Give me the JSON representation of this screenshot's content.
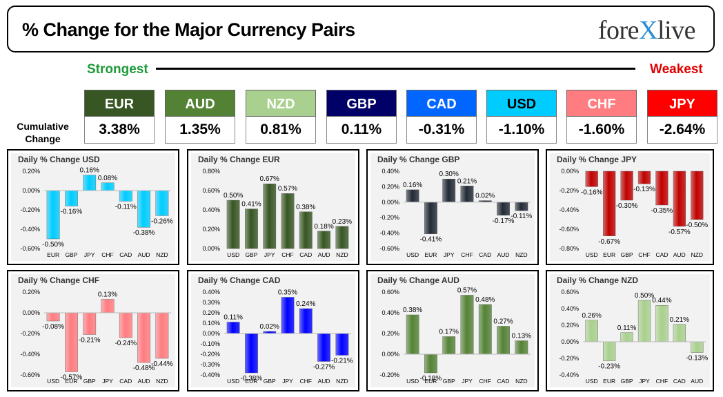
{
  "header": {
    "title": "% Change for the Major Currency Pairs",
    "logo_left": "fore",
    "logo_x": "X",
    "logo_right": "live"
  },
  "scale": {
    "strongest": "Strongest",
    "weakest": "Weakest"
  },
  "cumulative": {
    "label_line1": "Cumulative",
    "label_line2": "Change",
    "items": [
      {
        "code": "EUR",
        "value": "3.38%",
        "color": "#375623",
        "text_color": "#ffffff"
      },
      {
        "code": "AUD",
        "value": "1.35%",
        "color": "#548235",
        "text_color": "#ffffff"
      },
      {
        "code": "NZD",
        "value": "0.81%",
        "color": "#a9d08e",
        "text_color": "#ffffff"
      },
      {
        "code": "GBP",
        "value": "0.11%",
        "color": "#000066",
        "text_color": "#ffffff"
      },
      {
        "code": "CAD",
        "value": "-0.31%",
        "color": "#0066ff",
        "text_color": "#ffffff"
      },
      {
        "code": "USD",
        "value": "-1.10%",
        "color": "#00ccff",
        "text_color": "#000000"
      },
      {
        "code": "CHF",
        "value": "-1.60%",
        "color": "#ff7c80",
        "text_color": "#ffffff"
      },
      {
        "code": "JPY",
        "value": "-2.64%",
        "color": "#ff0000",
        "text_color": "#ffffff"
      }
    ]
  },
  "chart_data": [
    {
      "type": "bar",
      "title": "Daily % Change USD",
      "categories": [
        "EUR",
        "GBP",
        "JPY",
        "CHF",
        "CAD",
        "AUD",
        "NZD"
      ],
      "values": [
        -0.5,
        -0.16,
        0.16,
        0.08,
        -0.11,
        -0.38,
        -0.26
      ],
      "labels": [
        "-0.50%",
        "-0.16%",
        "0.16%",
        "0.08%",
        "-0.11%",
        "-0.38%",
        "-0.26%"
      ],
      "ylim": [
        -0.6,
        0.2
      ],
      "yticks": [
        0.2,
        0.0,
        -0.2,
        -0.4,
        -0.6
      ],
      "ytick_labels": [
        "0.20%",
        "0.00%",
        "-0.20%",
        "-0.40%",
        "-0.60%"
      ],
      "color": "#00ccff"
    },
    {
      "type": "bar",
      "title": "Daily % Change EUR",
      "categories": [
        "USD",
        "GBP",
        "JPY",
        "CHF",
        "CAD",
        "AUD",
        "NZD"
      ],
      "values": [
        0.5,
        0.41,
        0.67,
        0.57,
        0.38,
        0.18,
        0.23
      ],
      "labels": [
        "0.50%",
        "0.41%",
        "0.67%",
        "0.57%",
        "0.38%",
        "0.18%",
        "0.23%"
      ],
      "ylim": [
        0.0,
        0.8
      ],
      "yticks": [
        0.8,
        0.6,
        0.4,
        0.2,
        0.0
      ],
      "ytick_labels": [
        "0.80%",
        "0.60%",
        "0.40%",
        "0.20%",
        "0.00%"
      ],
      "color": "#375623"
    },
    {
      "type": "bar",
      "title": "Daily % Change GBP",
      "categories": [
        "USD",
        "EUR",
        "JPY",
        "CHF",
        "CAD",
        "AUD",
        "NZD"
      ],
      "values": [
        0.16,
        -0.41,
        0.3,
        0.21,
        0.02,
        -0.17,
        -0.11
      ],
      "labels": [
        "0.16%",
        "-0.41%",
        "0.30%",
        "0.21%",
        "0.02%",
        "-0.17%",
        "-0.11%"
      ],
      "ylim": [
        -0.6,
        0.4
      ],
      "yticks": [
        0.4,
        0.2,
        0.0,
        -0.2,
        -0.4,
        -0.6
      ],
      "ytick_labels": [
        "0.40%",
        "0.20%",
        "0.00%",
        "-0.20%",
        "-0.40%",
        "-0.60%"
      ],
      "color": "#222a35"
    },
    {
      "type": "bar",
      "title": "Daily % Change JPY",
      "categories": [
        "USD",
        "EUR",
        "GBP",
        "CHF",
        "CAD",
        "AUD",
        "NZD"
      ],
      "values": [
        -0.16,
        -0.67,
        -0.3,
        -0.13,
        -0.35,
        -0.57,
        -0.5
      ],
      "labels": [
        "-0.16%",
        "-0.67%",
        "-0.30%",
        "-0.13%",
        "-0.35%",
        "-0.57%",
        "-0.50%"
      ],
      "ylim": [
        -0.8,
        0.0
      ],
      "yticks": [
        0.0,
        -0.2,
        -0.4,
        -0.6,
        -0.8
      ],
      "ytick_labels": [
        "0.00%",
        "-0.20%",
        "-0.40%",
        "-0.60%",
        "-0.80%"
      ],
      "color": "#c00000"
    },
    {
      "type": "bar",
      "title": "Daily % Change CHF",
      "categories": [
        "USD",
        "EUR",
        "GBP",
        "JPY",
        "CAD",
        "AUD",
        "NZD"
      ],
      "values": [
        -0.08,
        -0.57,
        -0.21,
        0.13,
        -0.24,
        -0.48,
        -0.44
      ],
      "labels": [
        "-0.08%",
        "-0.57%",
        "-0.21%",
        "0.13%",
        "-0.24%",
        "-0.48%",
        "-0.44%"
      ],
      "ylim": [
        -0.6,
        0.2
      ],
      "yticks": [
        0.2,
        0.0,
        -0.2,
        -0.4,
        -0.6
      ],
      "ytick_labels": [
        "0.20%",
        "0.00%",
        "-0.20%",
        "-0.40%",
        "-0.60%"
      ],
      "color": "#ff7c80"
    },
    {
      "type": "bar",
      "title": "Daily % Change CAD",
      "categories": [
        "USD",
        "EUR",
        "GBP",
        "JPY",
        "CHF",
        "AUD",
        "NZD"
      ],
      "values": [
        0.11,
        -0.38,
        0.02,
        0.35,
        0.24,
        -0.27,
        -0.21
      ],
      "labels": [
        "0.11%",
        "-0.38%",
        "0.02%",
        "0.35%",
        "0.24%",
        "-0.27%",
        "-0.21%"
      ],
      "ylim": [
        -0.4,
        0.4
      ],
      "yticks": [
        0.4,
        0.3,
        0.2,
        0.1,
        0.0,
        -0.1,
        -0.2,
        -0.3,
        -0.4
      ],
      "ytick_labels": [
        "0.40%",
        "0.30%",
        "0.20%",
        "0.10%",
        "0.00%",
        "-0.10%",
        "-0.20%",
        "-0.30%",
        "-0.40%"
      ],
      "color": "#0000ff"
    },
    {
      "type": "bar",
      "title": "Daily % Change AUD",
      "categories": [
        "USD",
        "EUR",
        "GBP",
        "JPY",
        "CHF",
        "CAD",
        "NZD"
      ],
      "values": [
        0.38,
        -0.18,
        0.17,
        0.57,
        0.48,
        0.27,
        0.13
      ],
      "labels": [
        "0.38%",
        "-0.18%",
        "0.17%",
        "0.57%",
        "0.48%",
        "0.27%",
        "0.13%"
      ],
      "ylim": [
        -0.2,
        0.6
      ],
      "yticks": [
        0.6,
        0.4,
        0.2,
        0.0,
        -0.2
      ],
      "ytick_labels": [
        "0.60%",
        "0.40%",
        "0.20%",
        "0.00%",
        "-0.20%"
      ],
      "color": "#548235"
    },
    {
      "type": "bar",
      "title": "Daily % Change NZD",
      "categories": [
        "USD",
        "EUR",
        "GBP",
        "JPY",
        "CHF",
        "CAD",
        "AUD"
      ],
      "values": [
        0.26,
        -0.23,
        0.11,
        0.5,
        0.44,
        0.21,
        -0.13
      ],
      "labels": [
        "0.26%",
        "-0.23%",
        "0.11%",
        "0.50%",
        "0.44%",
        "0.21%",
        "-0.13%"
      ],
      "ylim": [
        -0.4,
        0.6
      ],
      "yticks": [
        0.6,
        0.4,
        0.2,
        0.0,
        -0.2,
        -0.4
      ],
      "ytick_labels": [
        "0.60%",
        "0.40%",
        "0.20%",
        "0.00%",
        "-0.20%",
        "-0.40%"
      ],
      "color": "#a9d08e"
    }
  ]
}
